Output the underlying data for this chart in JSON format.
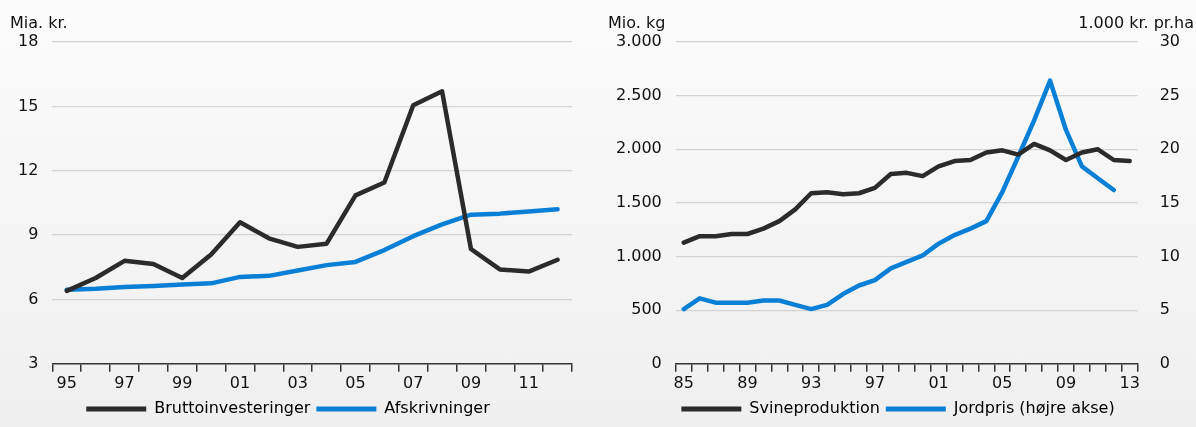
{
  "chart_data": [
    {
      "type": "line",
      "ylabel": "Mia. kr.",
      "categories": [
        "95",
        null,
        "97",
        null,
        "99",
        null,
        "01",
        null,
        "03",
        null,
        "05",
        null,
        "07",
        null,
        "09",
        null,
        "11",
        null
      ],
      "series": [
        {
          "name": "Bruttoinvesteringer",
          "color": "#2b2b2b",
          "values": [
            6.4,
            7.0,
            7.8,
            7.65,
            7.0,
            8.1,
            9.6,
            8.85,
            8.45,
            8.6,
            10.85,
            11.45,
            15.05,
            15.7,
            8.35,
            7.4,
            7.3,
            7.85
          ]
        },
        {
          "name": "Afskrivninger",
          "color": "#0a7fd6",
          "values": [
            6.45,
            6.5,
            6.58,
            6.63,
            6.7,
            6.75,
            7.05,
            7.1,
            7.35,
            7.6,
            7.75,
            8.3,
            8.95,
            9.5,
            9.95,
            10.0,
            10.1,
            10.2
          ]
        }
      ],
      "ylim": [
        3,
        18
      ],
      "yticks": [
        3,
        6,
        9,
        12,
        15,
        18
      ],
      "grid": "y",
      "legend": "bottom",
      "marker": "none",
      "line_style": "solid"
    },
    {
      "type": "line",
      "ylabel": "Mio. kg",
      "y2label": "1.000 kr. pr.ha",
      "categories": [
        "85",
        null,
        null,
        null,
        "89",
        null,
        null,
        null,
        "93",
        null,
        null,
        null,
        "97",
        null,
        null,
        null,
        "01",
        null,
        null,
        null,
        "05",
        null,
        null,
        null,
        "09",
        null,
        null,
        null,
        "13"
      ],
      "series": [
        {
          "name": "Svineproduktion",
          "color": "#2b2b2b",
          "values": [
            1130,
            1190,
            1190,
            1210,
            1210,
            1260,
            1330,
            1440,
            1590,
            1600,
            1580,
            1590,
            1640,
            1770,
            1780,
            1750,
            1840,
            1890,
            1900,
            1970,
            1990,
            1950,
            2050,
            1990,
            1900,
            1970,
            2000,
            1900,
            1890
          ]
        },
        {
          "name": "Jordpris (højre akse)",
          "color": "#0a7fd6",
          "axis": "y2",
          "values": [
            5.1,
            6.1,
            5.7,
            5.7,
            5.7,
            5.9,
            5.9,
            5.5,
            5.1,
            5.5,
            6.5,
            7.3,
            7.8,
            8.9,
            9.5,
            10.1,
            11.2,
            12.0,
            12.6,
            13.3,
            16.0,
            19.3,
            22.7,
            26.4,
            21.8,
            18.4,
            17.3,
            16.2,
            null
          ]
        }
      ],
      "ylim": [
        0,
        3000
      ],
      "yticks": [
        0,
        500,
        {
          "value": 1000,
          "label": "1.000"
        },
        {
          "value": 1500,
          "label": "1.500"
        },
        {
          "value": 2000,
          "label": "2.000"
        },
        {
          "value": 2500,
          "label": "2.500"
        },
        {
          "value": 3000,
          "label": "3.000"
        }
      ],
      "y2lim": [
        0,
        30
      ],
      "y2ticks": [
        0,
        5,
        10,
        15,
        20,
        25,
        30
      ],
      "grid": "y",
      "legend": "bottom",
      "marker": "none",
      "line_style": "solid"
    }
  ]
}
